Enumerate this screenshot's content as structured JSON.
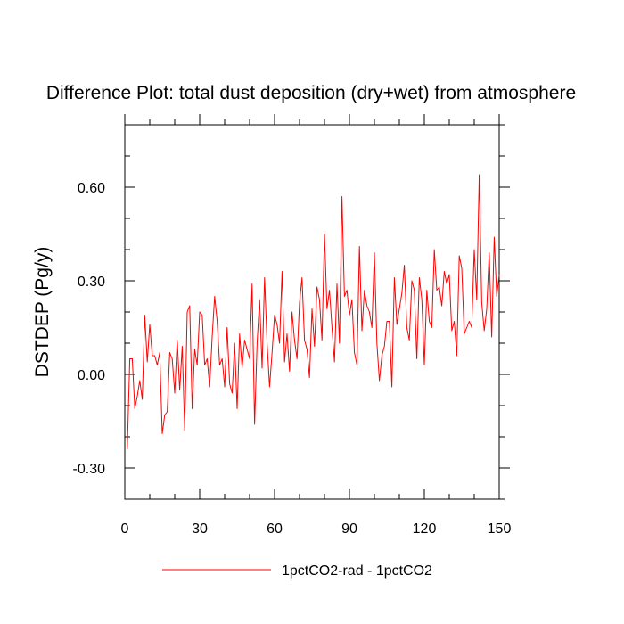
{
  "chart_data": {
    "type": "line",
    "title": "Difference Plot: total dust deposition (dry+wet) from atmosphere",
    "xlabel": "",
    "ylabel": "DSTDEP  (Pg/y)",
    "xlim": [
      0,
      150
    ],
    "ylim": [
      -0.4,
      0.8
    ],
    "x_ticks": [
      0,
      30,
      60,
      90,
      120,
      150
    ],
    "x_tick_labels": [
      "0",
      "30",
      "60",
      "90",
      "120",
      "150"
    ],
    "y_ticks": [
      -0.3,
      0.0,
      0.3,
      0.6
    ],
    "y_tick_labels": [
      "-0.30",
      "0.00",
      "0.30",
      "0.60"
    ],
    "grid": false,
    "legend_position": "bottom",
    "series": [
      {
        "name": "1pctCO2-rad - 1pctCO2",
        "color": "#ff0000",
        "x": [
          1,
          2,
          3,
          4,
          5,
          6,
          7,
          8,
          9,
          10,
          11,
          12,
          13,
          14,
          15,
          16,
          17,
          18,
          19,
          20,
          21,
          22,
          23,
          24,
          25,
          26,
          27,
          28,
          29,
          30,
          31,
          32,
          33,
          34,
          35,
          36,
          37,
          38,
          39,
          40,
          41,
          42,
          43,
          44,
          45,
          46,
          47,
          48,
          49,
          50,
          51,
          52,
          53,
          54,
          55,
          56,
          57,
          58,
          59,
          60,
          61,
          62,
          63,
          64,
          65,
          66,
          67,
          68,
          69,
          70,
          71,
          72,
          73,
          74,
          75,
          76,
          77,
          78,
          79,
          80,
          81,
          82,
          83,
          84,
          85,
          86,
          87,
          88,
          89,
          90,
          91,
          92,
          93,
          94,
          95,
          96,
          97,
          98,
          99,
          100,
          101,
          102,
          103,
          104,
          105,
          106,
          107,
          108,
          109,
          110,
          111,
          112,
          113,
          114,
          115,
          116,
          117,
          118,
          119,
          120,
          121,
          122,
          123,
          124,
          125,
          126,
          127,
          128,
          129,
          130,
          131,
          132,
          133,
          134,
          135,
          136,
          137,
          138,
          139,
          140,
          141,
          142,
          143,
          144,
          145,
          146,
          147,
          148,
          149,
          150
        ],
        "values": [
          -0.24,
          0.05,
          0.05,
          -0.11,
          -0.07,
          -0.02,
          -0.08,
          0.19,
          0.04,
          0.16,
          0.06,
          0.06,
          0.03,
          0.07,
          -0.19,
          -0.13,
          -0.12,
          0.07,
          0.05,
          -0.06,
          0.11,
          -0.05,
          0.09,
          -0.18,
          0.2,
          0.22,
          -0.11,
          0.08,
          0.03,
          0.2,
          0.19,
          0.03,
          0.05,
          -0.04,
          0.12,
          0.25,
          0.17,
          0.03,
          0.05,
          -0.04,
          0.15,
          -0.03,
          -0.06,
          0.1,
          -0.11,
          0.13,
          0.02,
          0.11,
          0.08,
          0.05,
          0.29,
          -0.16,
          0.1,
          0.24,
          0.02,
          0.31,
          0.1,
          -0.04,
          0.07,
          0.19,
          0.16,
          0.1,
          0.33,
          0.04,
          0.13,
          0.01,
          0.2,
          0.11,
          0.05,
          0.23,
          0.31,
          0.11,
          0.08,
          -0.01,
          0.21,
          0.09,
          0.28,
          0.24,
          0.11,
          0.45,
          0.21,
          0.27,
          0.15,
          0.04,
          0.29,
          0.1,
          0.57,
          0.25,
          0.27,
          0.19,
          0.24,
          0.07,
          0.03,
          0.41,
          0.14,
          0.27,
          0.22,
          0.2,
          0.15,
          0.39,
          0.1,
          -0.02,
          0.06,
          0.09,
          0.17,
          0.17,
          -0.04,
          0.31,
          0.16,
          0.21,
          0.26,
          0.35,
          0.15,
          0.11,
          0.3,
          0.27,
          0.05,
          0.31,
          0.24,
          0.03,
          0.27,
          0.17,
          0.15,
          0.4,
          0.27,
          0.28,
          0.22,
          0.33,
          0.29,
          0.32,
          0.14,
          0.17,
          0.06,
          0.38,
          0.34,
          0.13,
          0.15,
          0.17,
          0.15,
          0.4,
          0.24,
          0.64,
          0.23,
          0.14,
          0.21,
          0.39,
          0.12,
          0.44,
          0.25,
          0.32
        ]
      }
    ]
  }
}
